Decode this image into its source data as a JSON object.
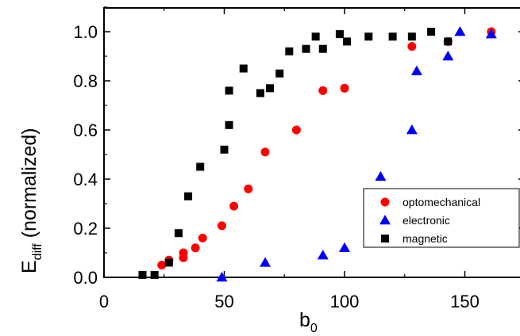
{
  "chart_data": {
    "type": "scatter",
    "title": "",
    "xlabel": {
      "main": "b",
      "sub": "0"
    },
    "ylabel": {
      "main": "E",
      "sub": "diff",
      "rest": " (normalized)"
    },
    "xlim": [
      0,
      175
    ],
    "ylim": [
      0,
      1.1
    ],
    "x_ticks": [
      0,
      50,
      100,
      150
    ],
    "x_tick_labels": [
      "0",
      "50",
      "100",
      "150"
    ],
    "y_ticks": [
      0.0,
      0.2,
      0.4,
      0.6,
      0.8,
      1.0
    ],
    "y_tick_labels": [
      "0.0",
      "0.2",
      "0.4",
      "0.6",
      "0.8",
      "1.0"
    ],
    "grid": false,
    "legend_position": "lower-right",
    "series": [
      {
        "name": "optomechanical",
        "marker": "circle",
        "color": "#ff0000",
        "points": [
          [
            24,
            0.05
          ],
          [
            27,
            0.07
          ],
          [
            33,
            0.08
          ],
          [
            33,
            0.1
          ],
          [
            38,
            0.12
          ],
          [
            41,
            0.16
          ],
          [
            49,
            0.21
          ],
          [
            54,
            0.29
          ],
          [
            60,
            0.36
          ],
          [
            67,
            0.51
          ],
          [
            80,
            0.6
          ],
          [
            91,
            0.76
          ],
          [
            100,
            0.77
          ],
          [
            128,
            0.94
          ],
          [
            143,
            0.96
          ],
          [
            161,
            1.0
          ]
        ]
      },
      {
        "name": "electronic",
        "marker": "triangle",
        "color": "#0000ff",
        "points": [
          [
            49,
            0.0
          ],
          [
            67,
            0.06
          ],
          [
            91,
            0.09
          ],
          [
            100,
            0.12
          ],
          [
            115,
            0.41
          ],
          [
            128,
            0.6
          ],
          [
            130,
            0.84
          ],
          [
            143,
            0.9
          ],
          [
            148,
            1.0
          ],
          [
            161,
            0.99
          ]
        ]
      },
      {
        "name": "magnetic",
        "marker": "square",
        "color": "#000000",
        "points": [
          [
            16,
            0.01
          ],
          [
            21,
            0.01
          ],
          [
            27,
            0.06
          ],
          [
            31,
            0.18
          ],
          [
            35,
            0.33
          ],
          [
            40,
            0.45
          ],
          [
            50,
            0.52
          ],
          [
            52,
            0.62
          ],
          [
            52,
            0.76
          ],
          [
            58,
            0.85
          ],
          [
            65,
            0.75
          ],
          [
            69,
            0.77
          ],
          [
            73,
            0.83
          ],
          [
            77,
            0.92
          ],
          [
            84,
            0.93
          ],
          [
            88,
            0.98
          ],
          [
            91,
            0.93
          ],
          [
            98,
            0.99
          ],
          [
            101,
            0.96
          ],
          [
            110,
            0.98
          ],
          [
            120,
            0.98
          ],
          [
            128,
            0.98
          ],
          [
            136,
            1.0
          ],
          [
            143,
            0.96
          ]
        ]
      }
    ]
  }
}
